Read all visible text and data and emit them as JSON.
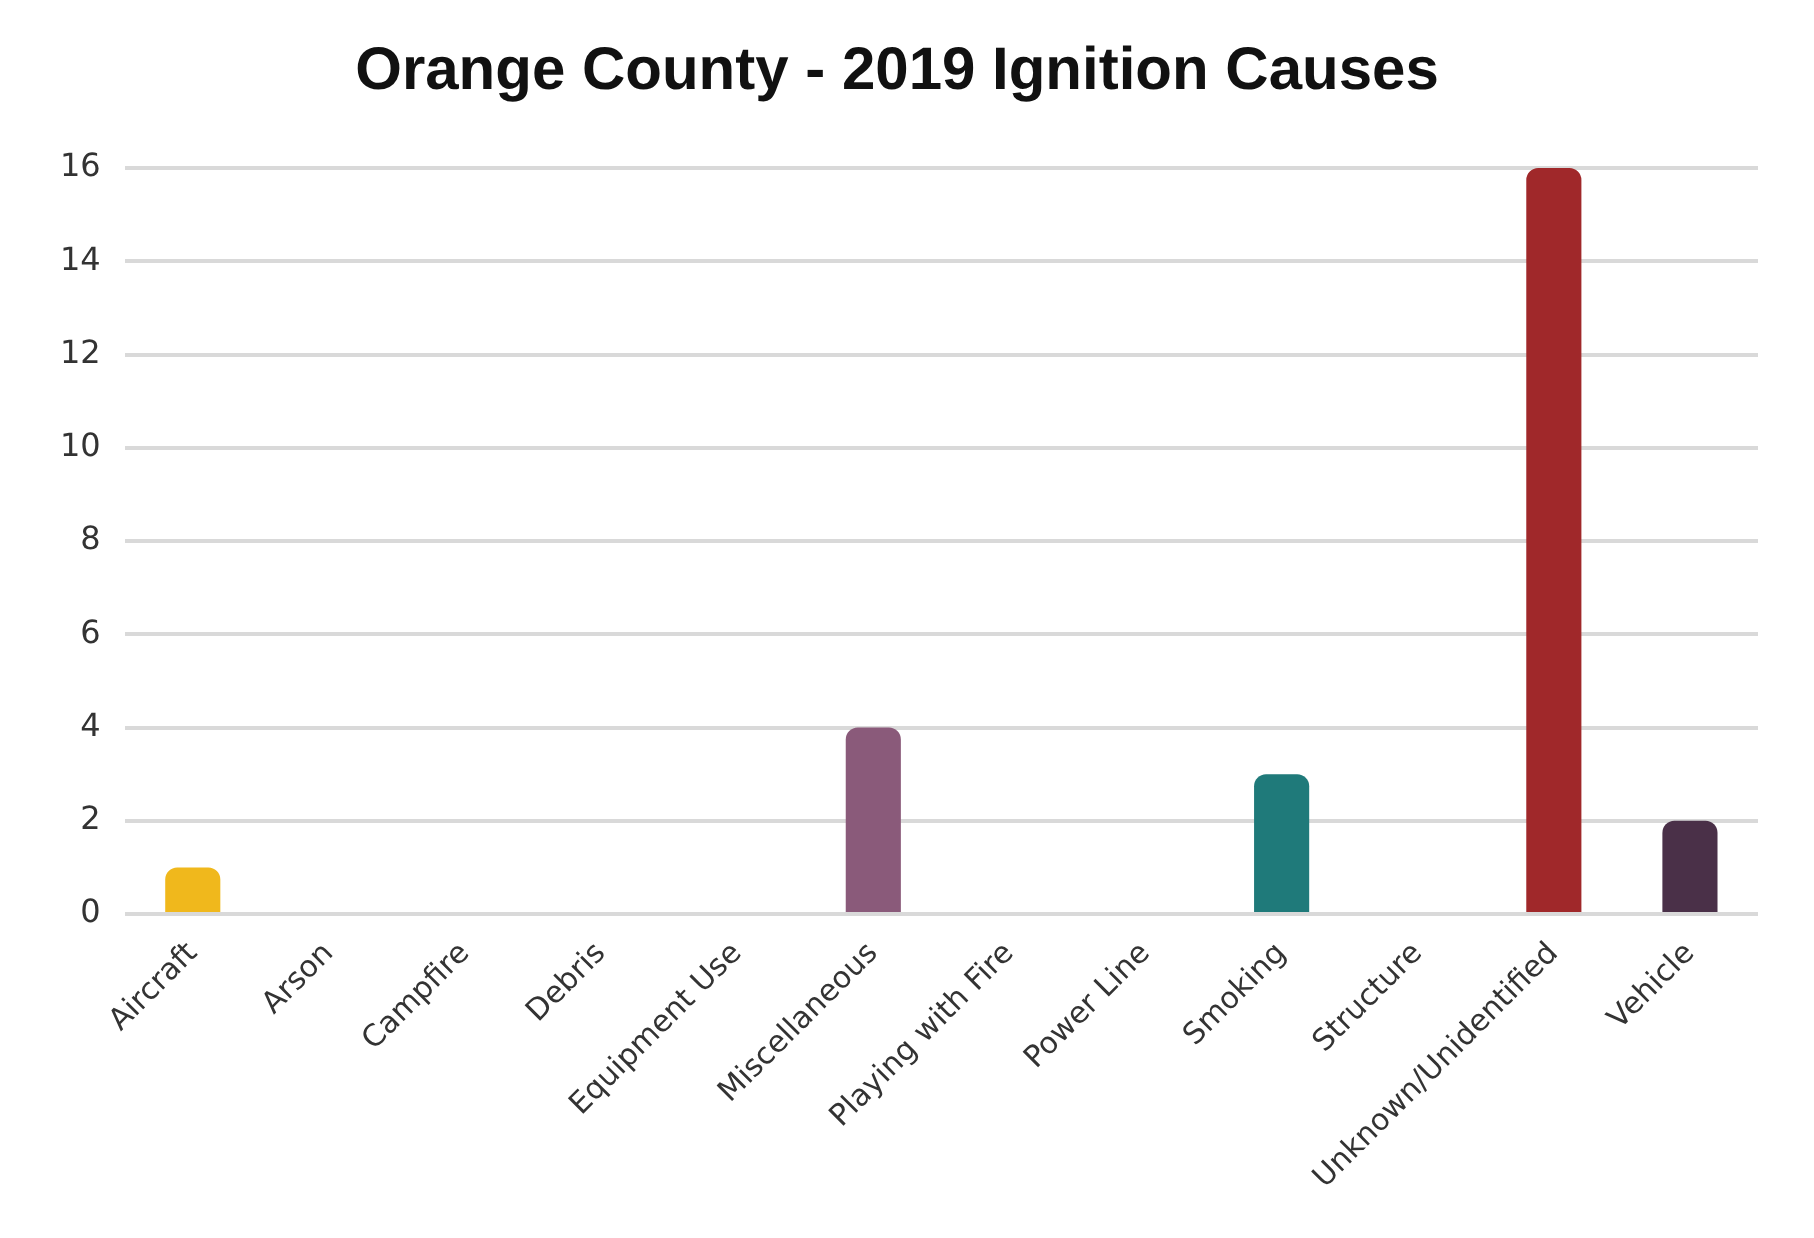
{
  "chart_data": {
    "type": "bar",
    "title": "Orange County - 2019 Ignition Causes",
    "categories": [
      "Aircraft",
      "Arson",
      "Campfire",
      "Debris",
      "Equipment Use",
      "Miscellaneous",
      "Playing with Fire",
      "Power Line",
      "Smoking",
      "Structure",
      "Unknown/Unidentified",
      "Vehicle"
    ],
    "values": [
      1,
      0,
      0,
      0,
      0,
      4,
      0,
      0,
      3,
      0,
      16,
      2
    ],
    "colors": [
      "#f0b81c",
      "#5a5a5a",
      "#2aa0b0",
      "#7a8a6a",
      "#c0504d",
      "#8a5a7a",
      "#b8860b",
      "#404040",
      "#1f7a7a",
      "#5f7050",
      "#a0282a",
      "#4a3048"
    ],
    "ylim": [
      0,
      16
    ],
    "yticks": [
      0,
      2,
      4,
      6,
      8,
      10,
      12,
      14,
      16
    ],
    "grid": "y",
    "legend": false
  }
}
